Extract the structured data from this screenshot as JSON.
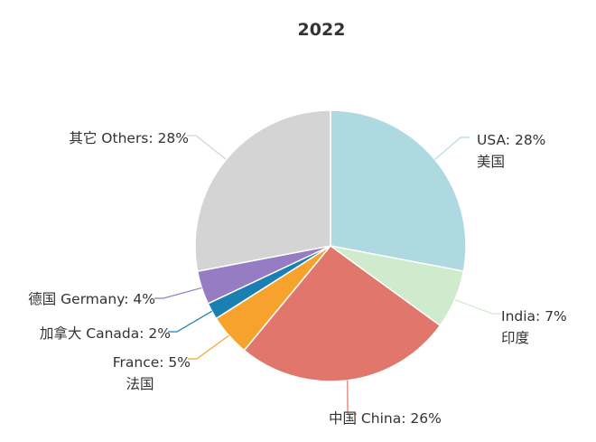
{
  "chart_data": {
    "type": "pie",
    "title": "2022",
    "slices": [
      {
        "label_line1": "USA: 28%",
        "label_line2": "美国",
        "value": 28,
        "color": "#afd9e0"
      },
      {
        "label_line1": "India: 7%",
        "label_line2": "印度",
        "value": 7,
        "color": "#cfeacc"
      },
      {
        "label_line1": "中国  China: 26%",
        "label_line2": "",
        "value": 26,
        "color": "#e0766c"
      },
      {
        "label_line1": "France: 5%",
        "label_line2": "法国",
        "value": 5,
        "color": "#f6a22d"
      },
      {
        "label_line1": "加拿大  Canada: 2%",
        "label_line2": "",
        "value": 2,
        "color": "#1a80b2"
      },
      {
        "label_line1": "德国  Germany: 4%",
        "label_line2": "",
        "value": 4,
        "color": "#967cc2"
      },
      {
        "label_line1": "其它  Others: 28%",
        "label_line2": "",
        "value": 28,
        "color": "#d4d4d4"
      }
    ]
  }
}
